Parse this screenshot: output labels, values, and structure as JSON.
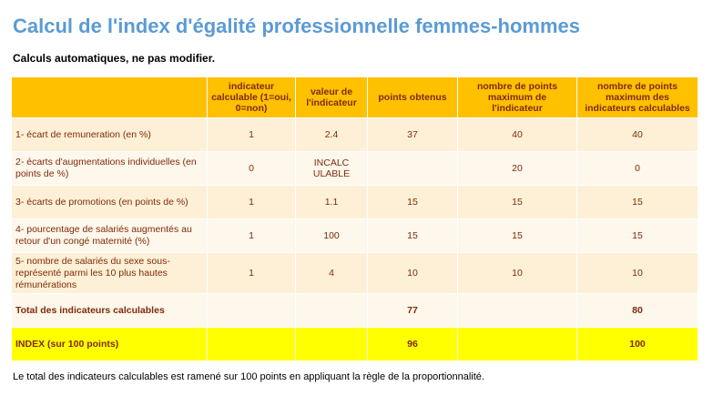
{
  "title": "Calcul de l'index d'égalité professionnelle femmes-hommes",
  "subtitle": "Calculs automatiques, ne pas modifier.",
  "table": {
    "headers": [
      "",
      "indicateur calculable (1=oui, 0=non)",
      "valeur de l'indicateur",
      "points obtenus",
      "nombre de points maximum de l'indicateur",
      "nombre de points maximum des indicateurs calculables"
    ],
    "rows": [
      [
        "1- écart de remuneration (en %)",
        "1",
        "2.4",
        "37",
        "40",
        "40"
      ],
      [
        "2- écarts d'augmentations individuelles (en points de %)",
        "0",
        "INCALC ULABLE",
        "",
        "20",
        "0"
      ],
      [
        "3- écarts de promotions (en points de %)",
        "1",
        "1.1",
        "15",
        "15",
        "15"
      ],
      [
        "4- pourcentage de salariés augmentés au retour d'un congé maternité (%)",
        "1",
        "100",
        "15",
        "15",
        "15"
      ],
      [
        "5- nombre de salariés du sexe sous-représenté parmi les 10 plus hautes rémunérations",
        "1",
        "4",
        "10",
        "10",
        "10"
      ]
    ],
    "total": {
      "label": "Total des indicateurs calculables",
      "points": "77",
      "max": "80"
    },
    "index": {
      "label": "INDEX (sur 100 points)",
      "points": "96",
      "max": "100"
    }
  },
  "footnote": "Le total des indicateurs calculables est ramené sur 100 points en appliquant la règle de la proportionnalité."
}
